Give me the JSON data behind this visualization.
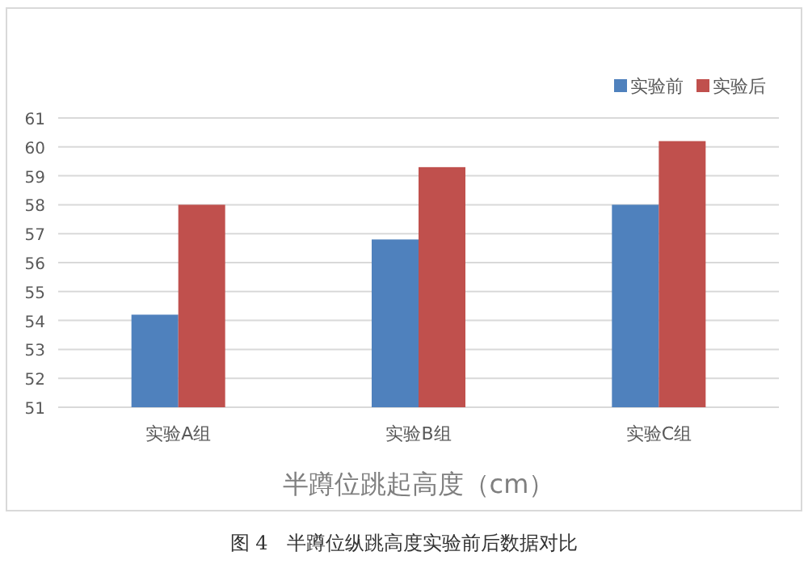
{
  "chart_data": {
    "type": "bar",
    "xlabel": "半蹲位跳起高度（cm）",
    "categories": [
      "实验A组",
      "实验B组",
      "实验C组"
    ],
    "series": [
      {
        "name": "实验前",
        "color": "#4f81bd",
        "values": [
          54.2,
          56.8,
          58.0
        ]
      },
      {
        "name": "实验后",
        "color": "#c0504d",
        "values": [
          58.0,
          59.3,
          60.2
        ]
      }
    ],
    "ylim": [
      51,
      61
    ],
    "yticks": [
      51,
      52,
      53,
      54,
      55,
      56,
      57,
      58,
      59,
      60,
      61
    ],
    "grid": "y",
    "legend": "top right",
    "annotations": [
      "图 4　半蹲位纵跳高度实验前后数据对比"
    ]
  }
}
